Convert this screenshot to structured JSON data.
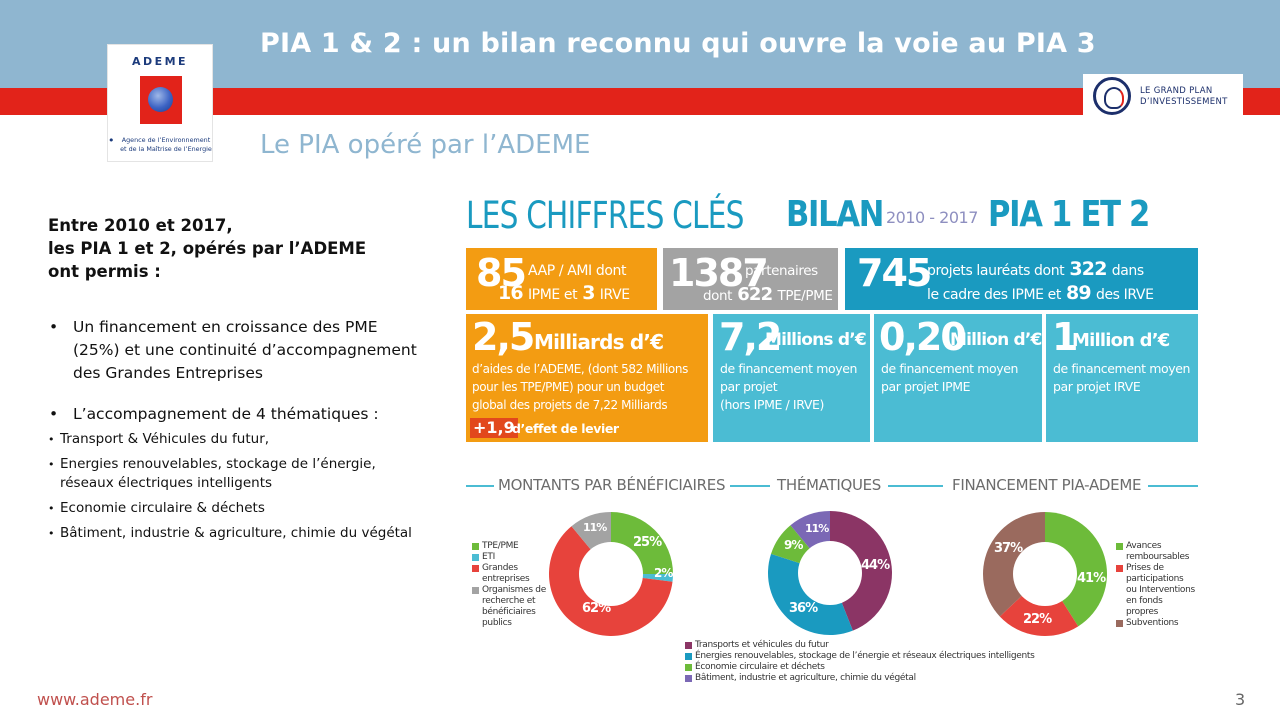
{
  "header": {
    "title": "PIA 1 & 2 : un bilan reconnu qui ouvre la voie au PIA 3",
    "subtitle": "Le PIA opéré par l’ADEME",
    "ademe_logo": {
      "name": "ADEME",
      "line1": "Agence de l’Environnement",
      "line2": "et de la Maîtrise de l’Energie"
    },
    "gpi_logo": {
      "seal": "INVESTIR L’AVENIR",
      "line1": "LE GRAND PLAN",
      "line2": "D’INVESTISSEMENT"
    }
  },
  "left": {
    "intro": [
      "Entre 2010 et 2017,",
      "les PIA 1 et 2, opérés par l’ADEME",
      "ont permis :"
    ],
    "bullets": [
      {
        "text": "Un financement en croissance des PME (25%) et une continuité d’accompagnement des Grandes Entreprises"
      },
      {
        "text": "L’accompagnement de 4 thématiques :"
      }
    ],
    "sub_bullets": [
      "Transport & Véhicules du futur,",
      "Energies renouvelables, stockage de l’énergie, réseaux électriques intelligents",
      "Economie circulaire & déchets",
      "Bâtiment, industrie & agriculture, chimie du végétal"
    ]
  },
  "infographic": {
    "title": {
      "part1": "LES CHIFFRES CLÉS",
      "part2": "BILAN",
      "years": "2010 - 2017",
      "part3": "PIA 1 ET 2"
    },
    "tiles": {
      "aap": {
        "big": "85",
        "t1": "AAP / AMI dont",
        "n1": "16",
        "t2": "IPME et",
        "n2": "3",
        "t3": "IRVE"
      },
      "partners": {
        "big": "1387",
        "t1": "partenaires",
        "t2": "dont",
        "n1": "622",
        "t3": "TPE/PME"
      },
      "projects": {
        "big": "745",
        "t1": "projets lauréats dont",
        "n1": "322",
        "t2": "dans",
        "t3": "le cadre des IPME et",
        "n2": "89",
        "t4": "des IRVE"
      },
      "aid": {
        "big": "2,5",
        "unit": "Milliards d’€",
        "l1": "d’aides de l’ADEME, (dont 582 Millions",
        "l2": "pour les TPE/PME) pour un budget",
        "l3": "global des projets de 7,22 Milliards",
        "lever": "+1,9",
        "lever_text": "d’effet de levier"
      },
      "avg": {
        "big": "7,2",
        "unit": "Millions d’€",
        "l1": "de financement moyen",
        "l2": "par projet",
        "l3": "(hors IPME / IRVE)"
      },
      "ipme": {
        "big": "0,20",
        "unit": "Million d’€",
        "l1": "de financement moyen",
        "l2": "par projet IPME"
      },
      "irve": {
        "big": "1",
        "unit": "Million d’€",
        "l1": "de financement moyen",
        "l2": "par projet IRVE"
      }
    },
    "sections": [
      "MONTANTS PAR BÉNÉFICIAIRES",
      "THÉMATIQUES",
      "FINANCEMENT PIA-ADEME"
    ]
  },
  "chart_data": [
    {
      "type": "pie",
      "title": "MONTANTS PAR BÉNÉFICIAIRES",
      "categories": [
        "TPE/PME",
        "ETI",
        "Grandes entreprises",
        "Organismes de recherche et bénéficiaires publics"
      ],
      "values": [
        25,
        2,
        62,
        11
      ],
      "labels": [
        "25%",
        "2%",
        "62%",
        "11%"
      ],
      "colors": [
        "#6dbb3a",
        "#4bbcd3",
        "#e7433c",
        "#a3a3a3"
      ],
      "legend_position": "left",
      "donut": true
    },
    {
      "type": "pie",
      "title": "THÉMATIQUES",
      "categories": [
        "Transports et véhicules du futur",
        "Énergies renouvelables, stockage de l’énergie et réseaux électriques intelligents",
        "Économie circulaire et déchets",
        "Bâtiment, industrie et agriculture, chimie du végétal"
      ],
      "values": [
        44,
        36,
        9,
        11
      ],
      "labels": [
        "44%",
        "36%",
        "9%",
        "11%"
      ],
      "colors": [
        "#8b3565",
        "#1a9ac0",
        "#6dbb3a",
        "#7b68b5"
      ],
      "legend_position": "bottom",
      "donut": true
    },
    {
      "type": "pie",
      "title": "FINANCEMENT PIA-ADEME",
      "categories": [
        "Avances remboursables",
        "Prises de participations ou Interventions en fonds propres",
        "Subventions"
      ],
      "values": [
        41,
        22,
        37
      ],
      "labels": [
        "41%",
        "22%",
        "37%"
      ],
      "colors": [
        "#6dbb3a",
        "#e7433c",
        "#9a6a5e"
      ],
      "legend_position": "right",
      "donut": true
    }
  ],
  "footer": {
    "url": "www.ademe.fr",
    "page": "3"
  }
}
